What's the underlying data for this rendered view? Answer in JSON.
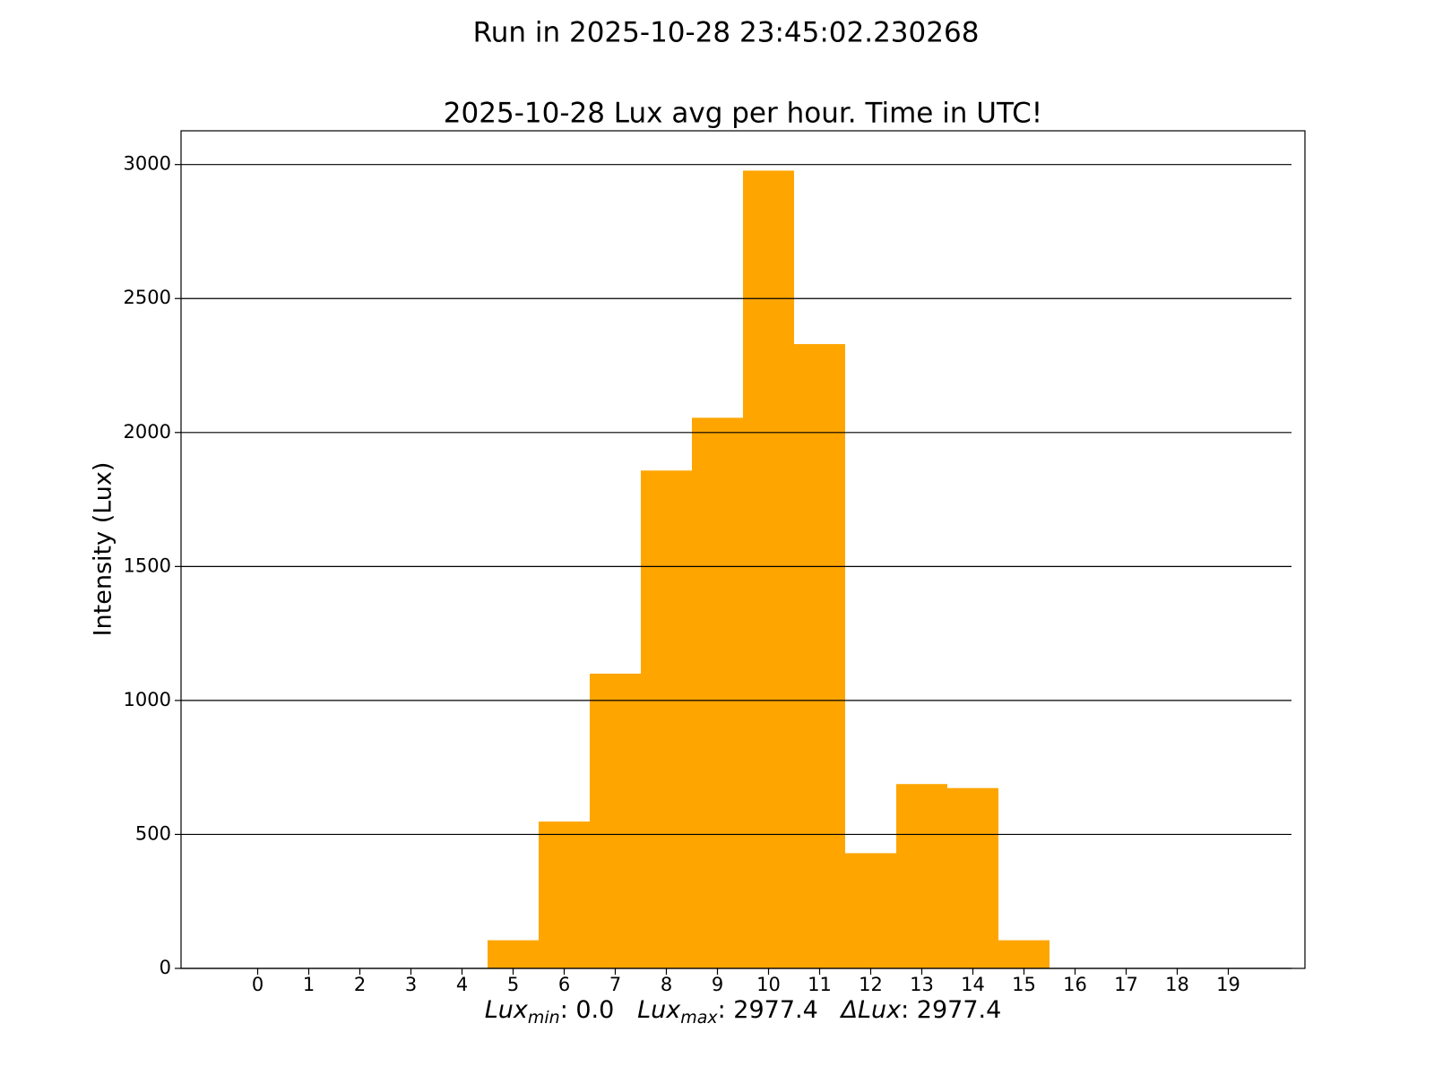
{
  "chart_data": {
    "type": "bar",
    "suptitle": "Run in 2025-10-28 23:45:02.230268",
    "title": "2025-10-28 Lux avg per hour. Time in UTC!",
    "y_label": "Intensity (Lux)",
    "x_label": [
      {
        "text": "Lux",
        "style": "italic"
      },
      {
        "text": "min",
        "style": "sub"
      },
      {
        "text": ": 0.0   ",
        "style": "normal"
      },
      {
        "text": "Lux",
        "style": "italic"
      },
      {
        "text": "max",
        "style": "sub"
      },
      {
        "text": ": 2977.4   ",
        "style": "normal"
      },
      {
        "text": "ΔLux",
        "style": "italic"
      },
      {
        "text": ": 2977.4",
        "style": "normal"
      }
    ],
    "x": [
      0,
      1,
      2,
      3,
      4,
      5,
      6,
      7,
      8,
      9,
      10,
      11,
      12,
      13,
      14,
      15,
      16,
      17,
      18,
      19
    ],
    "values": [
      0,
      0,
      0,
      0,
      0,
      105,
      548,
      1100,
      1858,
      2055,
      2977.4,
      2330,
      430,
      688,
      673,
      105,
      0,
      0,
      0,
      0
    ],
    "color": "#ffa500",
    "xlim": [
      -1.5,
      20.5
    ],
    "xticks": [
      0,
      1,
      2,
      3,
      4,
      5,
      6,
      7,
      8,
      9,
      10,
      11,
      12,
      13,
      14,
      15,
      16,
      17,
      18,
      19
    ],
    "ylim": [
      0,
      3126
    ],
    "yticks": [
      0,
      500,
      1000,
      1500,
      2000,
      2500,
      3000
    ],
    "grid": true
  }
}
